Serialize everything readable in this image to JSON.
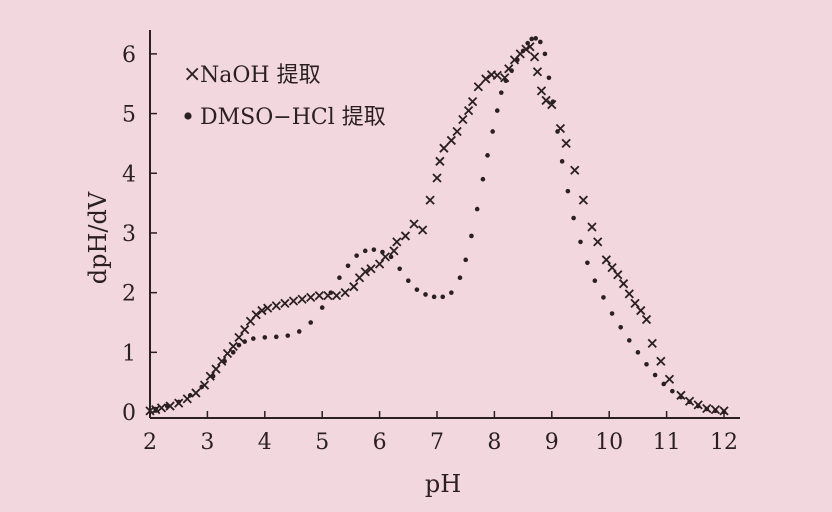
{
  "chart_data": {
    "type": "scatter",
    "title": "",
    "xlabel": "pH",
    "ylabel": "dpH/dV",
    "xlim": [
      2,
      12.4
    ],
    "ylim": [
      -0.1,
      6.4
    ],
    "xticks": [
      "2",
      "3",
      "4",
      "5",
      "6",
      "7",
      "8",
      "9",
      "10",
      "11",
      "12"
    ],
    "yticks": [
      "0",
      "1",
      "2",
      "3",
      "4",
      "5",
      "6"
    ],
    "legend_position": "top-left",
    "grid": false,
    "series": [
      {
        "name": "NaOH 提取",
        "marker": "x",
        "points": [
          [
            2.0,
            0.02
          ],
          [
            2.1,
            0.04
          ],
          [
            2.2,
            0.07
          ],
          [
            2.35,
            0.1
          ],
          [
            2.5,
            0.15
          ],
          [
            2.65,
            0.22
          ],
          [
            2.8,
            0.32
          ],
          [
            2.95,
            0.45
          ],
          [
            3.05,
            0.6
          ],
          [
            3.15,
            0.72
          ],
          [
            3.25,
            0.85
          ],
          [
            3.35,
            0.98
          ],
          [
            3.45,
            1.1
          ],
          [
            3.55,
            1.25
          ],
          [
            3.65,
            1.38
          ],
          [
            3.75,
            1.52
          ],
          [
            3.85,
            1.63
          ],
          [
            3.95,
            1.7
          ],
          [
            4.05,
            1.74
          ],
          [
            4.2,
            1.78
          ],
          [
            4.35,
            1.82
          ],
          [
            4.5,
            1.86
          ],
          [
            4.65,
            1.89
          ],
          [
            4.8,
            1.92
          ],
          [
            4.95,
            1.95
          ],
          [
            5.1,
            1.95
          ],
          [
            5.25,
            1.95
          ],
          [
            5.4,
            2.0
          ],
          [
            5.55,
            2.1
          ],
          [
            5.65,
            2.25
          ],
          [
            5.75,
            2.35
          ],
          [
            5.85,
            2.4
          ],
          [
            6.0,
            2.48
          ],
          [
            6.1,
            2.6
          ],
          [
            6.25,
            2.7
          ],
          [
            6.3,
            2.85
          ],
          [
            6.45,
            2.95
          ],
          [
            6.6,
            3.15
          ],
          [
            6.75,
            3.05
          ],
          [
            6.88,
            3.55
          ],
          [
            7.0,
            3.92
          ],
          [
            7.05,
            4.2
          ],
          [
            7.12,
            4.42
          ],
          [
            7.25,
            4.55
          ],
          [
            7.35,
            4.7
          ],
          [
            7.45,
            4.9
          ],
          [
            7.55,
            5.05
          ],
          [
            7.62,
            5.2
          ],
          [
            7.72,
            5.45
          ],
          [
            7.85,
            5.58
          ],
          [
            7.95,
            5.65
          ],
          [
            8.05,
            5.64
          ],
          [
            8.18,
            5.6
          ],
          [
            8.25,
            5.75
          ],
          [
            8.35,
            5.9
          ],
          [
            8.45,
            6.0
          ],
          [
            8.55,
            6.08
          ],
          [
            8.62,
            6.12
          ],
          [
            8.7,
            5.95
          ],
          [
            8.75,
            5.7
          ],
          [
            8.82,
            5.38
          ],
          [
            8.9,
            5.22
          ],
          [
            9.0,
            5.15
          ],
          [
            9.15,
            4.75
          ],
          [
            9.25,
            4.5
          ],
          [
            9.4,
            4.05
          ],
          [
            9.55,
            3.55
          ],
          [
            9.7,
            3.1
          ],
          [
            9.8,
            2.85
          ],
          [
            9.95,
            2.55
          ],
          [
            10.05,
            2.42
          ],
          [
            10.15,
            2.3
          ],
          [
            10.25,
            2.15
          ],
          [
            10.35,
            1.98
          ],
          [
            10.45,
            1.82
          ],
          [
            10.55,
            1.7
          ],
          [
            10.65,
            1.55
          ],
          [
            10.75,
            1.15
          ],
          [
            10.9,
            0.85
          ],
          [
            11.05,
            0.55
          ],
          [
            11.25,
            0.28
          ],
          [
            11.4,
            0.18
          ],
          [
            11.55,
            0.12
          ],
          [
            11.7,
            0.06
          ],
          [
            11.85,
            0.04
          ],
          [
            12.0,
            0.02
          ]
        ]
      },
      {
        "name": "DMSO−HCl 提取",
        "marker": "dot",
        "points": [
          [
            2.1,
            0.05
          ],
          [
            2.3,
            0.1
          ],
          [
            2.5,
            0.17
          ],
          [
            2.7,
            0.28
          ],
          [
            2.9,
            0.42
          ],
          [
            3.1,
            0.6
          ],
          [
            3.3,
            0.85
          ],
          [
            3.45,
            1.0
          ],
          [
            3.55,
            1.12
          ],
          [
            3.65,
            1.18
          ],
          [
            3.8,
            1.23
          ],
          [
            4.0,
            1.25
          ],
          [
            4.2,
            1.26
          ],
          [
            4.4,
            1.28
          ],
          [
            4.6,
            1.35
          ],
          [
            4.8,
            1.5
          ],
          [
            5.0,
            1.75
          ],
          [
            5.15,
            2.0
          ],
          [
            5.3,
            2.25
          ],
          [
            5.45,
            2.45
          ],
          [
            5.6,
            2.62
          ],
          [
            5.75,
            2.7
          ],
          [
            5.9,
            2.72
          ],
          [
            6.05,
            2.68
          ],
          [
            6.2,
            2.6
          ],
          [
            6.35,
            2.4
          ],
          [
            6.5,
            2.2
          ],
          [
            6.65,
            2.05
          ],
          [
            6.8,
            1.97
          ],
          [
            6.95,
            1.93
          ],
          [
            7.1,
            1.93
          ],
          [
            7.25,
            2.0
          ],
          [
            7.4,
            2.25
          ],
          [
            7.5,
            2.55
          ],
          [
            7.6,
            2.95
          ],
          [
            7.7,
            3.4
          ],
          [
            7.8,
            3.9
          ],
          [
            7.88,
            4.3
          ],
          [
            7.97,
            4.7
          ],
          [
            8.05,
            5.05
          ],
          [
            8.12,
            5.35
          ],
          [
            8.2,
            5.55
          ],
          [
            8.3,
            5.72
          ],
          [
            8.4,
            5.9
          ],
          [
            8.5,
            6.05
          ],
          [
            8.58,
            6.18
          ],
          [
            8.65,
            6.25
          ],
          [
            8.72,
            6.26
          ],
          [
            8.8,
            6.2
          ],
          [
            8.88,
            6.0
          ],
          [
            8.95,
            5.6
          ],
          [
            9.02,
            5.2
          ],
          [
            9.1,
            4.7
          ],
          [
            9.18,
            4.2
          ],
          [
            9.28,
            3.7
          ],
          [
            9.38,
            3.25
          ],
          [
            9.5,
            2.85
          ],
          [
            9.62,
            2.5
          ],
          [
            9.75,
            2.2
          ],
          [
            9.9,
            1.92
          ],
          [
            10.05,
            1.65
          ],
          [
            10.2,
            1.42
          ],
          [
            10.35,
            1.2
          ],
          [
            10.5,
            1.0
          ],
          [
            10.65,
            0.8
          ],
          [
            10.8,
            0.62
          ],
          [
            10.95,
            0.47
          ],
          [
            11.1,
            0.35
          ],
          [
            11.25,
            0.25
          ],
          [
            11.4,
            0.17
          ],
          [
            11.55,
            0.1
          ],
          [
            11.7,
            0.05
          ],
          [
            11.85,
            0.02
          ],
          [
            12.0,
            0.0
          ]
        ]
      }
    ]
  }
}
